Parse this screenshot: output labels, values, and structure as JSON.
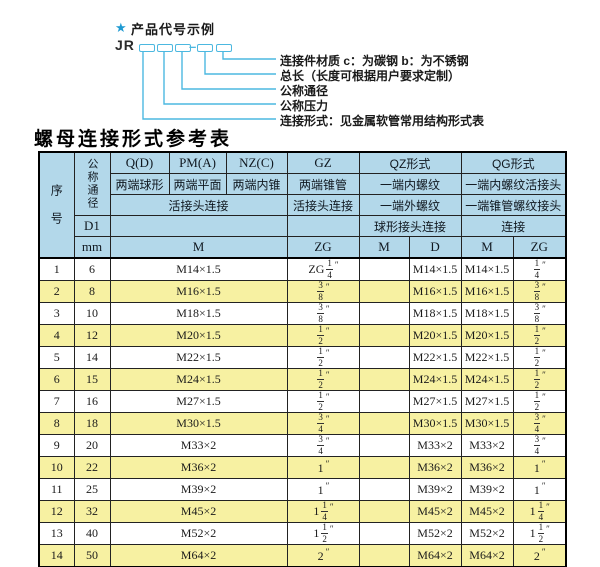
{
  "colors": {
    "accent": "#4cb8e0",
    "star": "#1e9ad2",
    "header_bg": "#b3d8ea",
    "row_alt": "#f7f1a2",
    "border": "#222222"
  },
  "diagram": {
    "star": "★",
    "title": "产品代号示例",
    "code_prefix": "JR",
    "dash": "–",
    "labels": [
      "连接件材质  c：为碳钢  b：为不锈钢",
      "总长（长度可根据用户要求定制）",
      "公称通径",
      "公称压力",
      "连接形式：见金属软管常用结构形式表"
    ]
  },
  "table": {
    "title": "螺母连接形式参考表",
    "header": {
      "seq": "序号",
      "dn": "公称通径",
      "d1": "D1",
      "mm": "mm",
      "col_q": "Q(D)",
      "col_pm": "PM(A)",
      "col_nz": "NZ(C)",
      "col_gz": "GZ",
      "col_qz": "QZ形式",
      "col_qg": "QG形式",
      "q_desc": "两端球形",
      "pm_desc": "两端平面",
      "nz_desc": "两端内锥",
      "gz_desc": "两端锥管",
      "qz_desc1": "一端内螺纹",
      "qg_desc1": "一端内螺纹活接头",
      "union_conn": "活接头连接",
      "gz_conn": "活接头连接",
      "qz_desc2": "一端外螺纹",
      "qg_desc2": "一端锥管螺纹接头",
      "qz_conn": "球形接头连接",
      "qg_conn": "连接",
      "m_label": "M",
      "zg_label": "ZG",
      "qz_m_label": "M",
      "qz_d_label": "D",
      "qg_m_label": "M",
      "qg_zg_label": "ZG"
    },
    "rows": [
      {
        "no": "1",
        "dn": "6",
        "m": "M14×1.5",
        "gz": "ZG 1/4\"",
        "qz_m": "",
        "qz_d": "M14×1.5",
        "qg_m": "M14×1.5",
        "qg_zg": "1/4\""
      },
      {
        "no": "2",
        "dn": "8",
        "m": "M16×1.5",
        "gz": "3/8\"",
        "qz_m": "",
        "qz_d": "M16×1.5",
        "qg_m": "M16×1.5",
        "qg_zg": "3/8\""
      },
      {
        "no": "3",
        "dn": "10",
        "m": "M18×1.5",
        "gz": "3/8\"",
        "qz_m": "",
        "qz_d": "M18×1.5",
        "qg_m": "M18×1.5",
        "qg_zg": "3/8\""
      },
      {
        "no": "4",
        "dn": "12",
        "m": "M20×1.5",
        "gz": "1/2\"",
        "qz_m": "",
        "qz_d": "M20×1.5",
        "qg_m": "M20×1.5",
        "qg_zg": "1/2\""
      },
      {
        "no": "5",
        "dn": "14",
        "m": "M22×1.5",
        "gz": "1/2\"",
        "qz_m": "",
        "qz_d": "M22×1.5",
        "qg_m": "M22×1.5",
        "qg_zg": "1/2\""
      },
      {
        "no": "6",
        "dn": "15",
        "m": "M24×1.5",
        "gz": "1/2\"",
        "qz_m": "",
        "qz_d": "M24×1.5",
        "qg_m": "M24×1.5",
        "qg_zg": "1/2\""
      },
      {
        "no": "7",
        "dn": "16",
        "m": "M27×1.5",
        "gz": "1/2\"",
        "qz_m": "",
        "qz_d": "M27×1.5",
        "qg_m": "M27×1.5",
        "qg_zg": "1/2\""
      },
      {
        "no": "8",
        "dn": "18",
        "m": "M30×1.5",
        "gz": "3/4\"",
        "qz_m": "",
        "qz_d": "M30×1.5",
        "qg_m": "M30×1.5",
        "qg_zg": "3/4\""
      },
      {
        "no": "9",
        "dn": "20",
        "m": "M33×2",
        "gz": "3/4\"",
        "qz_m": "",
        "qz_d": "M33×2",
        "qg_m": "M33×2",
        "qg_zg": "3/4\""
      },
      {
        "no": "10",
        "dn": "22",
        "m": "M36×2",
        "gz": "1\"",
        "qz_m": "",
        "qz_d": "M36×2",
        "qg_m": "M36×2",
        "qg_zg": "1\""
      },
      {
        "no": "11",
        "dn": "25",
        "m": "M39×2",
        "gz": "1\"",
        "qz_m": "",
        "qz_d": "M39×2",
        "qg_m": "M39×2",
        "qg_zg": "1\""
      },
      {
        "no": "12",
        "dn": "32",
        "m": "M45×2",
        "gz": "1 1/4\"",
        "qz_m": "",
        "qz_d": "M45×2",
        "qg_m": "M45×2",
        "qg_zg": "1 1/4\""
      },
      {
        "no": "13",
        "dn": "40",
        "m": "M52×2",
        "gz": "1 1/2\"",
        "qz_m": "",
        "qz_d": "M52×2",
        "qg_m": "M52×2",
        "qg_zg": "1 1/2\""
      },
      {
        "no": "14",
        "dn": "50",
        "m": "M64×2",
        "gz": "2\"",
        "qz_m": "",
        "qz_d": "M64×2",
        "qg_m": "M64×2",
        "qg_zg": "2\""
      }
    ]
  }
}
